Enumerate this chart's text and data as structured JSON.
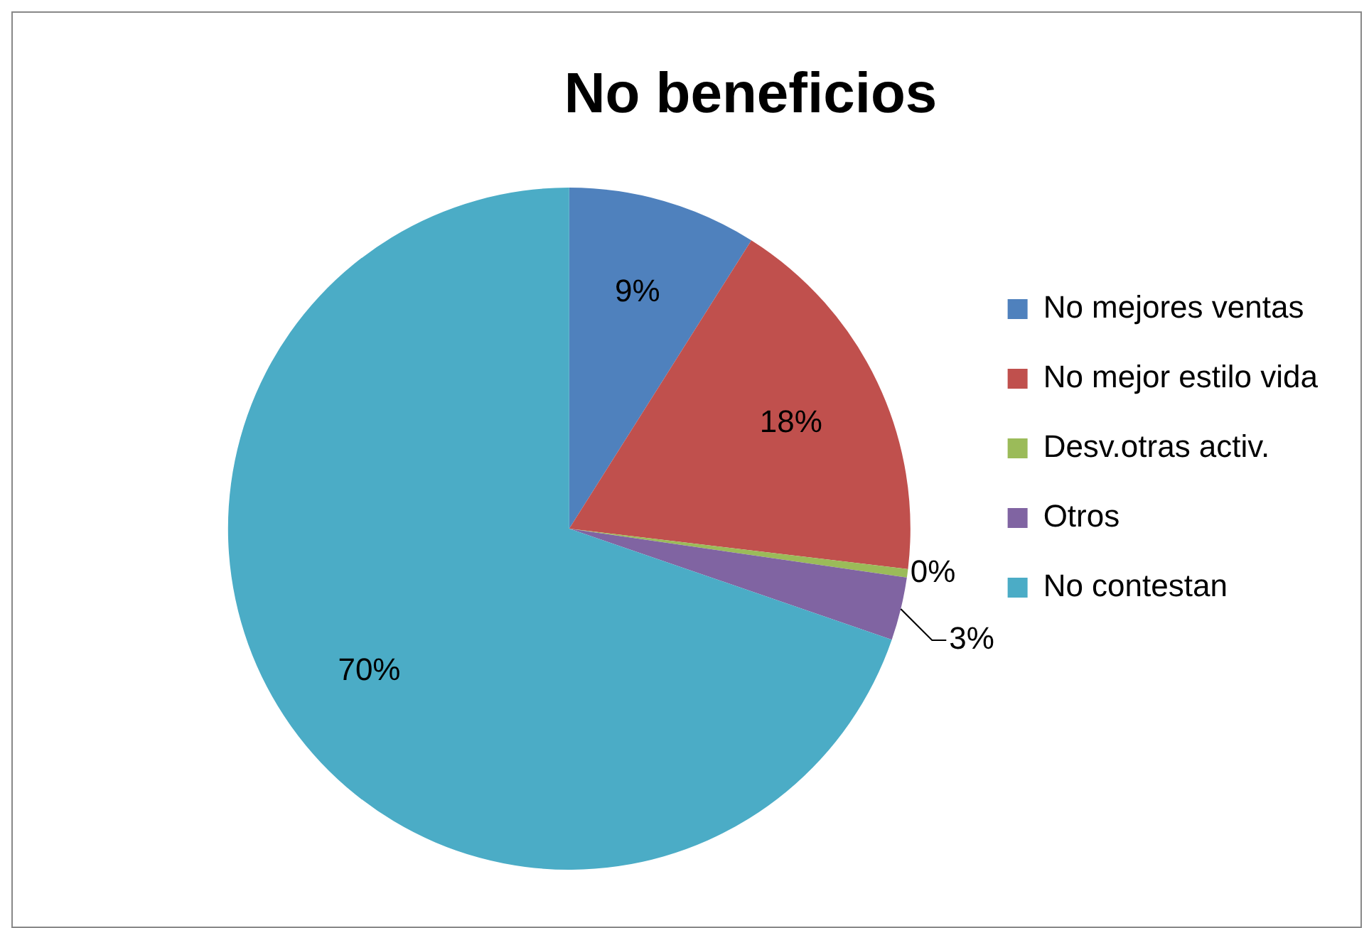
{
  "chart_data": {
    "type": "pie",
    "title": "No beneficios",
    "categories": [
      "No mejores ventas",
      "No mejor estilo vida",
      "Desv.otras activ.",
      "Otros",
      "No contestan"
    ],
    "values": [
      9,
      18,
      0.4,
      3,
      70
    ],
    "value_labels": [
      "9%",
      "18%",
      "0%",
      "3%",
      "70%"
    ],
    "colors": [
      "#4f81bd",
      "#c0504d",
      "#9bbb59",
      "#8064a2",
      "#4bacc6"
    ],
    "legend": "right"
  }
}
